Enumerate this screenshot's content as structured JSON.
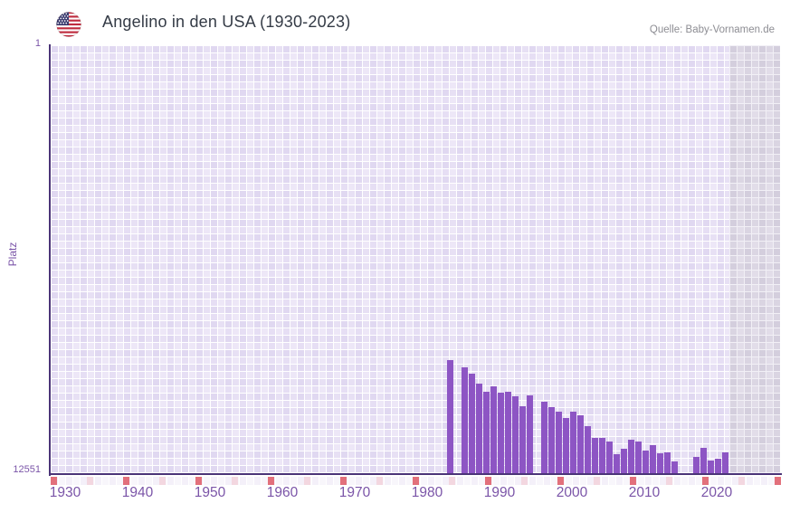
{
  "header": {
    "title": "Angelino in den USA (1930-2023)",
    "source": "Quelle: Baby-Vornamen.de",
    "flag_icon": "us-flag-icon"
  },
  "chart_data": {
    "type": "bar",
    "title": "Angelino in den USA (1930-2023)",
    "xlabel": "",
    "ylabel": "Platz",
    "y_axis": {
      "top_label": "1",
      "bottom_label": "12551",
      "min": 1,
      "max": 12551,
      "inverted": true
    },
    "x_axis": {
      "start": 1928,
      "end": 2028,
      "decade_labels": [
        1930,
        1940,
        1950,
        1960,
        1970,
        1980,
        1990,
        2000,
        2010,
        2020
      ],
      "red_ticks_dark": [
        1928,
        1938,
        1948,
        1958,
        1968,
        1978,
        1988,
        1998,
        2008,
        2018,
        2028
      ],
      "red_ticks_light": [
        1933,
        1943,
        1953,
        1963,
        1973,
        1983,
        1993,
        2003,
        2013,
        2023
      ]
    },
    "bars": [
      {
        "year": 1983,
        "rank": 9210
      },
      {
        "year": 1985,
        "rank": 9420
      },
      {
        "year": 1986,
        "rank": 9610
      },
      {
        "year": 1987,
        "rank": 9900
      },
      {
        "year": 1988,
        "rank": 10140
      },
      {
        "year": 1989,
        "rank": 9980
      },
      {
        "year": 1990,
        "rank": 10170
      },
      {
        "year": 1991,
        "rank": 10140
      },
      {
        "year": 1992,
        "rank": 10280
      },
      {
        "year": 1993,
        "rank": 10570
      },
      {
        "year": 1994,
        "rank": 10250
      },
      {
        "year": 1996,
        "rank": 10440
      },
      {
        "year": 1997,
        "rank": 10600
      },
      {
        "year": 1998,
        "rank": 10730
      },
      {
        "year": 1999,
        "rank": 10920
      },
      {
        "year": 2000,
        "rank": 10730
      },
      {
        "year": 2001,
        "rank": 10840
      },
      {
        "year": 2002,
        "rank": 11160
      },
      {
        "year": 2003,
        "rank": 11500
      },
      {
        "year": 2004,
        "rank": 11500
      },
      {
        "year": 2005,
        "rank": 11610
      },
      {
        "year": 2006,
        "rank": 11980
      },
      {
        "year": 2007,
        "rank": 11820
      },
      {
        "year": 2008,
        "rank": 11550
      },
      {
        "year": 2009,
        "rank": 11610
      },
      {
        "year": 2010,
        "rank": 11870
      },
      {
        "year": 2011,
        "rank": 11720
      },
      {
        "year": 2012,
        "rank": 11950
      },
      {
        "year": 2013,
        "rank": 11930
      },
      {
        "year": 2014,
        "rank": 12190
      },
      {
        "year": 2017,
        "rank": 12060
      },
      {
        "year": 2018,
        "rank": 11790
      },
      {
        "year": 2019,
        "rank": 12170
      },
      {
        "year": 2020,
        "rank": 12110
      },
      {
        "year": 2021,
        "rank": 11930
      }
    ],
    "missing_years": [
      1984,
      1995,
      2015,
      2016
    ],
    "no_data_region": {
      "from": 2022,
      "to": 2028
    },
    "colors": {
      "bar": "#8d55c4",
      "axis_line": "#4b3478",
      "axis_label": "#7b55a8",
      "red_tick_dark": "#e2707b",
      "red_tick_light": "#f3d7e0",
      "grid_cell": "#ede7f7",
      "no_data_cell": "#e2dde9",
      "title_text": "#343b46",
      "source_text": "#8d8d93"
    }
  }
}
